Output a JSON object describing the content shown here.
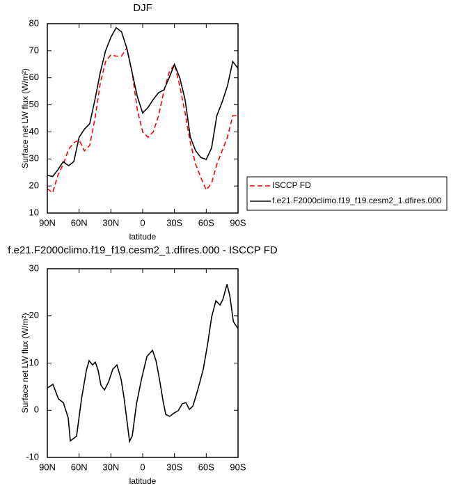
{
  "chart_data": [
    {
      "type": "line",
      "title": "DJF",
      "x_label": "latitude",
      "y_label": "Surface net LW flux (W/m²)",
      "xlim": [
        90,
        -90
      ],
      "xticks": [
        {
          "value": 90,
          "label": "90N"
        },
        {
          "value": 60,
          "label": "60N"
        },
        {
          "value": 30,
          "label": "30N"
        },
        0,
        {
          "value": -30,
          "label": "30S"
        },
        {
          "value": -60,
          "label": "60S"
        },
        {
          "value": -90,
          "label": "90S"
        }
      ],
      "ylim": [
        10,
        80
      ],
      "yticks": [
        10,
        20,
        30,
        40,
        50,
        60,
        70,
        80
      ],
      "legend": "right",
      "x": [
        90,
        85,
        80,
        75,
        70,
        65,
        60,
        55,
        50,
        45,
        40,
        35,
        30,
        25,
        20,
        15,
        10,
        5,
        0,
        -5,
        -10,
        -15,
        -20,
        -25,
        -30,
        -35,
        -40,
        -45,
        -50,
        -55,
        -60,
        -65,
        -70,
        -75,
        -80,
        -85,
        -90
      ],
      "series": [
        {
          "name": "ISCCP FD",
          "color": "#ff0000",
          "dash": "dashed",
          "values": [
            19,
            17.5,
            24,
            28,
            33.5,
            36,
            37,
            33,
            35,
            45,
            58,
            66,
            68.5,
            68,
            68,
            71,
            62,
            48,
            40,
            38,
            40,
            46,
            55,
            62,
            65,
            57,
            47,
            36,
            28,
            23,
            18.5,
            21,
            28,
            33,
            38,
            46,
            46
          ]
        },
        {
          "name": "f.e21.F2000climo.f19_f19.cesm2_1.dfires.000",
          "color": "#000000",
          "dash": "solid",
          "values": [
            24,
            23.5,
            26,
            29,
            27.5,
            29,
            38,
            41,
            43,
            52,
            62,
            70,
            75,
            78.5,
            77,
            71,
            62,
            53,
            47,
            49,
            52,
            54.5,
            55.5,
            60,
            65,
            60,
            52,
            38,
            33,
            30.5,
            29.8,
            34,
            46,
            51,
            57,
            66,
            63.5
          ]
        }
      ]
    },
    {
      "type": "line",
      "title": "f.e21.F2000climo.f19_f19.cesm2_1.dfires.000 - ISCCP FD",
      "x_label": "latitude",
      "y_label": "Surface net LW flux (W/m²)",
      "xlim": [
        90,
        -90
      ],
      "xticks": [
        {
          "value": 90,
          "label": "90N"
        },
        {
          "value": 60,
          "label": "60N"
        },
        {
          "value": 30,
          "label": "30N"
        },
        0,
        {
          "value": -30,
          "label": "30S"
        },
        {
          "value": -60,
          "label": "60S"
        },
        {
          "value": -90,
          "label": "90S"
        }
      ],
      "ylim": [
        -10,
        30
      ],
      "yticks": [
        -10,
        0,
        10,
        20,
        30
      ],
      "x": [
        90,
        84.7,
        79.5,
        74.9,
        70.3,
        68.3,
        62.4,
        57.8,
        53.2,
        50.6,
        47.3,
        44.7,
        42,
        39.4,
        36.1,
        32.2,
        28.2,
        24.3,
        20.3,
        17.7,
        14.4,
        12.4,
        9.8,
        5.8,
        1.2,
        -4,
        -9.3,
        -12.6,
        -15.9,
        -19.2,
        -21.8,
        -25.6,
        -29.6,
        -33.5,
        -37.5,
        -40.8,
        -44.1,
        -47.4,
        -52,
        -57.2,
        -61.2,
        -65.1,
        -69.1,
        -73,
        -75.7,
        -79.6,
        -82.3,
        -85.6,
        -90
      ],
      "series": [
        {
          "color": "#000000",
          "dash": "solid",
          "values": [
            4.7,
            5.5,
            2.4,
            1.6,
            -1.6,
            -6.5,
            -5.5,
            2.3,
            8.4,
            10.5,
            9.6,
            10.2,
            8.4,
            5.3,
            4.3,
            6,
            8.7,
            9.6,
            6.5,
            2.8,
            -3,
            -6.6,
            -5.4,
            1.4,
            6.5,
            11.4,
            12.7,
            10.5,
            6.5,
            2,
            -0.9,
            -1.3,
            -0.6,
            -0.1,
            1.4,
            1.6,
            0.2,
            0.9,
            4.3,
            8.7,
            13.9,
            19.8,
            23.2,
            22.3,
            23.5,
            26.7,
            24.2,
            18.8,
            17.3
          ]
        }
      ]
    }
  ]
}
